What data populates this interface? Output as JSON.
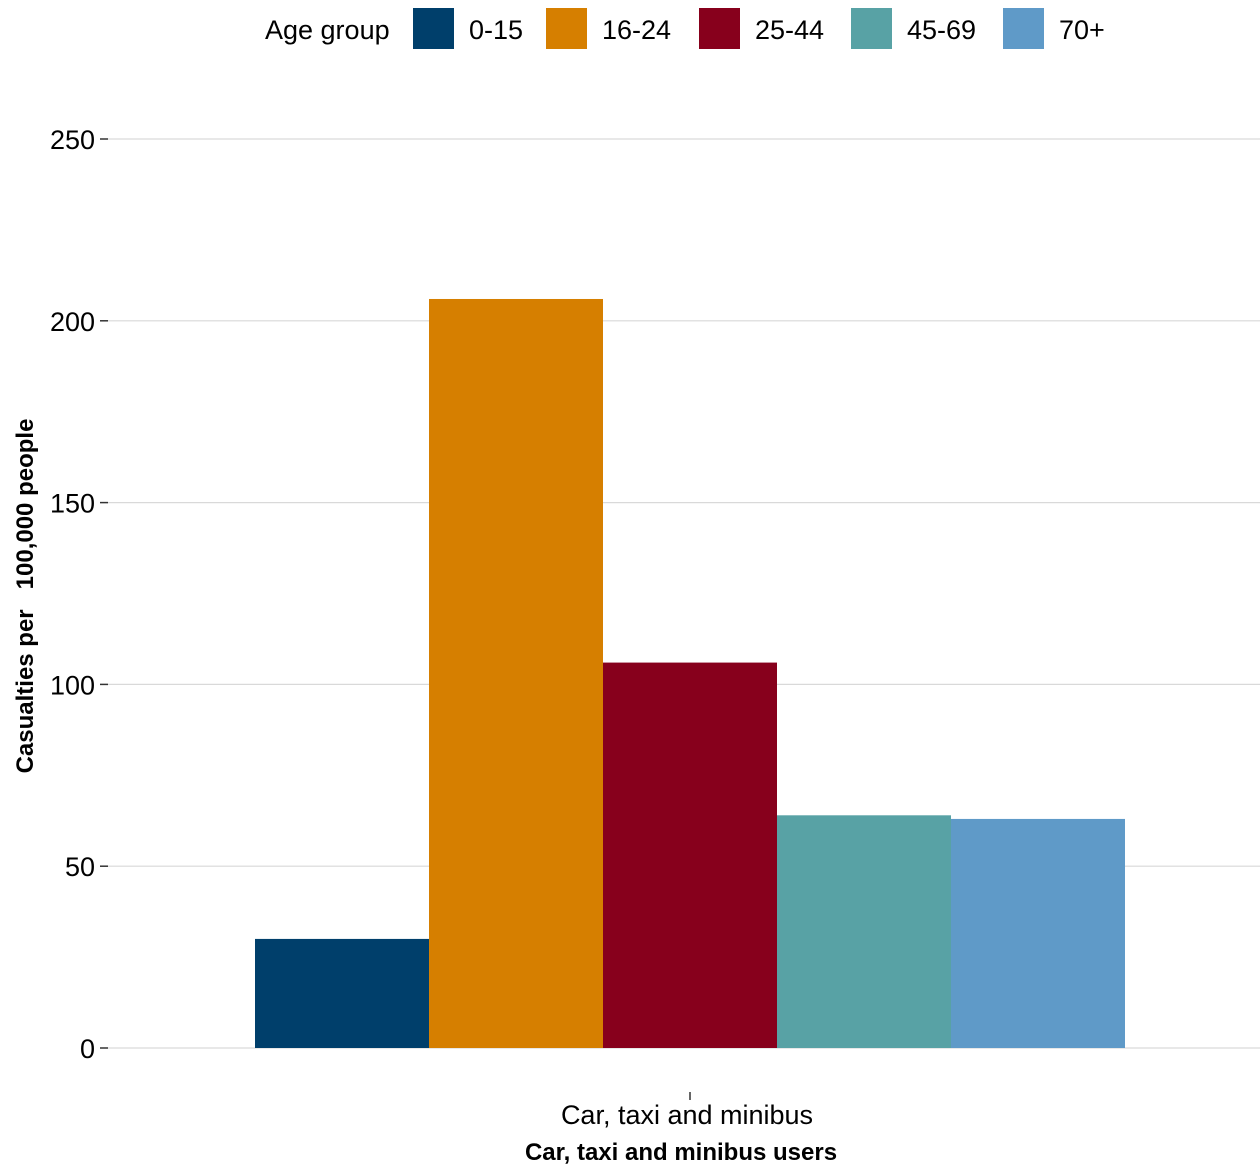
{
  "chart_data": {
    "type": "bar",
    "categories": [
      "Car, taxi and minibus"
    ],
    "series": [
      {
        "name": "0-15",
        "values": [
          30
        ],
        "color": "#003f6b"
      },
      {
        "name": "16-24",
        "values": [
          206
        ],
        "color": "#d67f00"
      },
      {
        "name": "25-44",
        "values": [
          106
        ],
        "color": "#87001c"
      },
      {
        "name": "45-69",
        "values": [
          64
        ],
        "color": "#58a2a5"
      },
      {
        "name": "70+",
        "values": [
          63
        ],
        "color": "#5f9ac8"
      }
    ],
    "legend_title": "Age group",
    "legend_position": "top",
    "xlabel": "Car, taxi and minibus users",
    "ylabel": "Casualties per   100,000 people",
    "ylim": [
      0,
      250
    ],
    "yticks": [
      "0",
      "50",
      "100",
      "150",
      "200",
      "250"
    ],
    "grid": "horizontal major"
  }
}
